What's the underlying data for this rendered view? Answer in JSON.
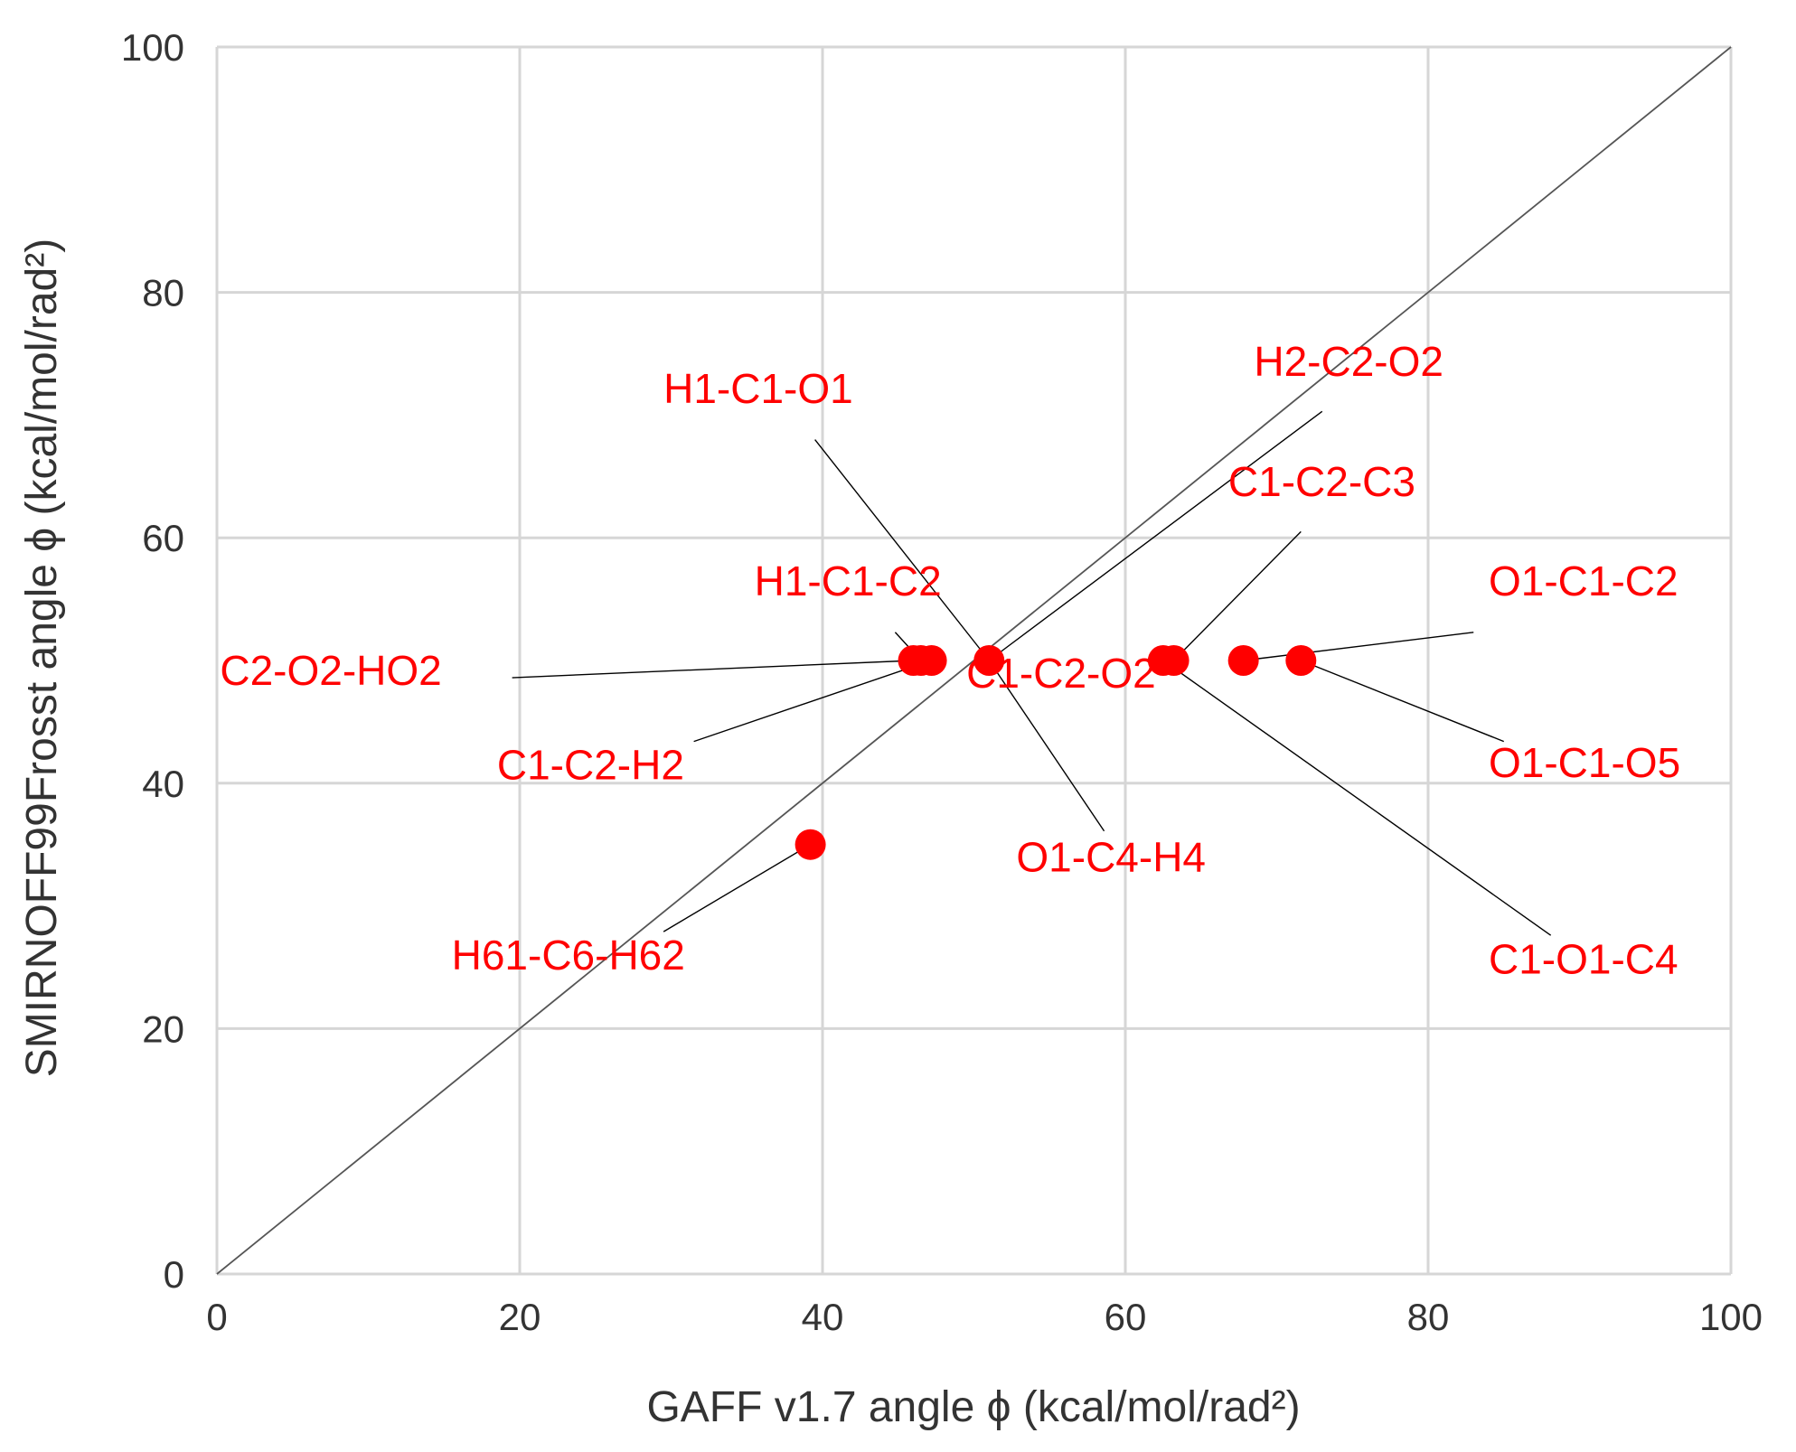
{
  "chart_data": {
    "type": "scatter",
    "title": "",
    "xlabel": "GAFF v1.7 angle ϕ (kcal/mol/rad²)",
    "ylabel": "SMIRNOFF99Frosst angle ϕ (kcal/mol/rad²)",
    "xlim": [
      0,
      100
    ],
    "ylim": [
      0,
      100
    ],
    "xticks": [
      "0",
      "20",
      "40",
      "60",
      "80",
      "100"
    ],
    "yticks": [
      "0",
      "20",
      "40",
      "60",
      "80",
      "100"
    ],
    "grid": true,
    "reference_line": "y = x",
    "point_color": "#ff0000",
    "label_color": "#ff0000",
    "points": [
      {
        "x": 39.2,
        "y": 35
      },
      {
        "x": 46.0,
        "y": 50
      },
      {
        "x": 46.5,
        "y": 50
      },
      {
        "x": 47.2,
        "y": 50
      },
      {
        "x": 51.0,
        "y": 50
      },
      {
        "x": 62.5,
        "y": 50
      },
      {
        "x": 63.2,
        "y": 50
      },
      {
        "x": 67.8,
        "y": 50
      },
      {
        "x": 71.6,
        "y": 50
      }
    ],
    "annotations": [
      {
        "text": "H1-C1-O1",
        "x": 51.0,
        "y": 50,
        "tx": 29.5,
        "ty": 71.0,
        "ax": 39.5,
        "ay": 68.0
      },
      {
        "text": "H2-C2-O2",
        "x": 51.0,
        "y": 50,
        "tx": 68.5,
        "ty": 73.2,
        "ax": 73.0,
        "ay": 70.3
      },
      {
        "text": "C1-C2-C3",
        "x": 63.2,
        "y": 50,
        "tx": 66.8,
        "ty": 63.4,
        "ax": 71.6,
        "ay": 60.5
      },
      {
        "text": "H1-C1-C2",
        "x": 46.5,
        "y": 50,
        "tx": 35.5,
        "ty": 55.3,
        "ax": 44.8,
        "ay": 52.3
      },
      {
        "text": "O1-C1-C2",
        "x": 67.8,
        "y": 50,
        "tx": 84.0,
        "ty": 55.3,
        "ax": 83.0,
        "ay": 52.3
      },
      {
        "text": "C2-O2-HO2",
        "x": 46.0,
        "y": 50,
        "tx": 0.2,
        "ty": 48.0,
        "ax": 19.5,
        "ay": 48.6
      },
      {
        "text": "C1-C2-O2",
        "x": 51.0,
        "y": 50,
        "tx": 49.5,
        "ty": 47.8,
        "ax": 51.0,
        "ay": 50.0
      },
      {
        "text": "C1-C2-H2",
        "x": 47.2,
        "y": 50,
        "tx": 18.5,
        "ty": 40.3,
        "ax": 31.5,
        "ay": 43.4
      },
      {
        "text": "O1-C1-O5",
        "x": 71.6,
        "y": 50,
        "tx": 84.0,
        "ty": 40.5,
        "ax": 85.0,
        "ay": 43.4
      },
      {
        "text": "O1-C4-H4",
        "x": 51.0,
        "y": 50,
        "tx": 52.8,
        "ty": 32.8,
        "ax": 58.6,
        "ay": 36.1
      },
      {
        "text": "H61-C6-H62",
        "x": 39.2,
        "y": 35,
        "tx": 15.5,
        "ty": 24.8,
        "ax": 29.5,
        "ay": 27.9
      },
      {
        "text": "C1-O1-C4",
        "x": 62.5,
        "y": 50,
        "tx": 84.0,
        "ty": 24.5,
        "ax": 88.1,
        "ay": 27.6
      }
    ]
  }
}
